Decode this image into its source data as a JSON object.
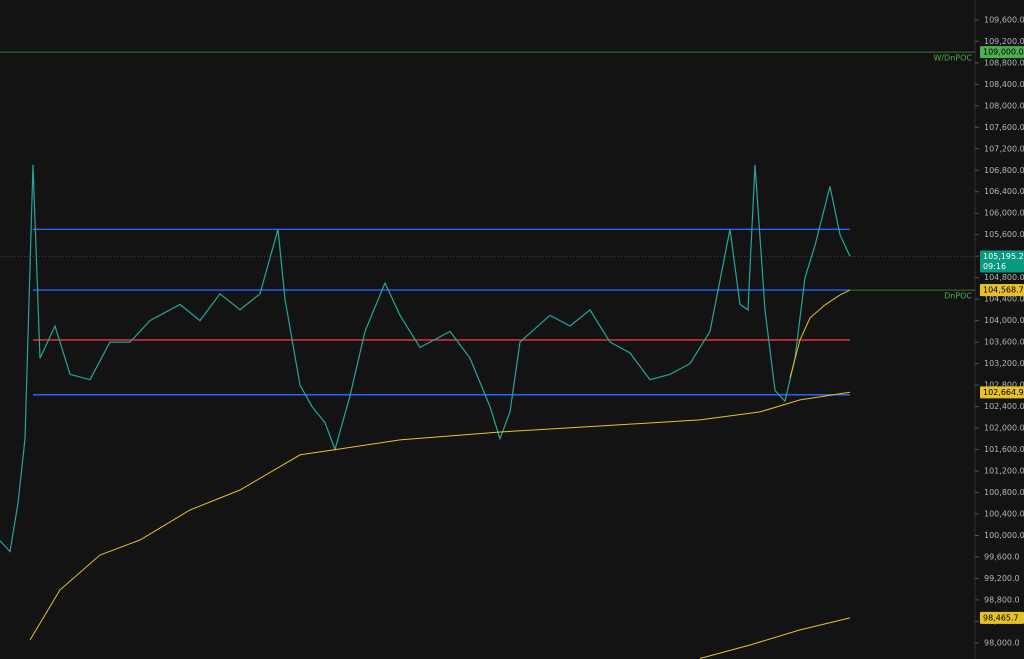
{
  "chart_data": {
    "type": "line",
    "ylim": [
      97700,
      109970
    ],
    "xlim": [
      0,
      970
    ],
    "yticks": [
      {
        "value": 98000,
        "label": "98,000.0"
      },
      {
        "value": 98400,
        "label": "98,400.0"
      },
      {
        "value": 98800,
        "label": "98,800.0"
      },
      {
        "value": 99200,
        "label": "99,200.0"
      },
      {
        "value": 99600,
        "label": "99,600.0"
      },
      {
        "value": 100000,
        "label": "100,000.0"
      },
      {
        "value": 100400,
        "label": "100,400.0"
      },
      {
        "value": 100800,
        "label": "100,800.0"
      },
      {
        "value": 101200,
        "label": "101,200.0"
      },
      {
        "value": 101600,
        "label": "101,600.0"
      },
      {
        "value": 102000,
        "label": "102,000.0"
      },
      {
        "value": 102400,
        "label": "102,400.0"
      },
      {
        "value": 102800,
        "label": "102,800.0"
      },
      {
        "value": 103200,
        "label": "103,200.0"
      },
      {
        "value": 103600,
        "label": "103,600.0"
      },
      {
        "value": 104000,
        "label": "104,000.0"
      },
      {
        "value": 104400,
        "label": "104,400.0"
      },
      {
        "value": 104800,
        "label": "104,800.0"
      },
      {
        "value": 105200,
        "label": "105,200.0"
      },
      {
        "value": 105600,
        "label": "105,600.0"
      },
      {
        "value": 106000,
        "label": "106,000.0"
      },
      {
        "value": 106400,
        "label": "106,400.0"
      },
      {
        "value": 106800,
        "label": "106,800.0"
      },
      {
        "value": 107200,
        "label": "107,200.0"
      },
      {
        "value": 107600,
        "label": "107,600.0"
      },
      {
        "value": 108000,
        "label": "108,000.0"
      },
      {
        "value": 108400,
        "label": "108,400.0"
      },
      {
        "value": 108800,
        "label": "108,800.0"
      },
      {
        "value": 109200,
        "label": "109,200.0"
      },
      {
        "value": 109600,
        "label": "109,600.0"
      }
    ],
    "series": [
      {
        "color": "#26a69a",
        "x": [
          0,
          10,
          18,
          25,
          33,
          40,
          55,
          70,
          90,
          110,
          130,
          150,
          180,
          200,
          220,
          240,
          260,
          278,
          285,
          300,
          312,
          325,
          335,
          350,
          365,
          385,
          400,
          420,
          450,
          470,
          490,
          500,
          510,
          520,
          550,
          570,
          590,
          610,
          630,
          650,
          670,
          690,
          710,
          730,
          740,
          748,
          755,
          765,
          775,
          785,
          795,
          805,
          815,
          830,
          840,
          850
        ],
        "values": [
          99900,
          99700,
          100600,
          101800,
          106900,
          103300,
          103900,
          103000,
          102900,
          103600,
          103600,
          104000,
          104300,
          104000,
          104500,
          104200,
          104500,
          105700,
          104400,
          102800,
          102400,
          102100,
          101600,
          102600,
          103800,
          104700,
          104100,
          103500,
          103800,
          103300,
          102400,
          101800,
          102300,
          103600,
          104100,
          103900,
          104200,
          103600,
          103400,
          102900,
          103000,
          103200,
          103800,
          105700,
          104300,
          104200,
          106900,
          104200,
          102700,
          102500,
          103300,
          104800,
          105400,
          106500,
          105600,
          105195.2
        ]
      },
      {
        "color": "#e6c229",
        "x": [
          30,
          60,
          100,
          140,
          190,
          240,
          300,
          400,
          500,
          600,
          700,
          760,
          800,
          850
        ],
        "values": [
          98054,
          98986,
          99637,
          99916,
          100475,
          100847,
          101500,
          101779,
          101927,
          102039,
          102151,
          102300,
          102524,
          102664.9
        ],
        "end_label": "102,664.9"
      },
      {
        "color": "#e6c229",
        "x": [
          790,
          800,
          810,
          825,
          840,
          850
        ],
        "values": [
          102933,
          103641,
          104051,
          104293,
          104479,
          104568.7
        ],
        "end_label": "104,568.7"
      },
      {
        "color": "#e6c229",
        "x": [
          700,
          750,
          800,
          850
        ],
        "values": [
          97710,
          97961,
          98241,
          98465.7
        ],
        "end_label": "98,465.7"
      }
    ],
    "levels": [
      {
        "name": "W/DnPOC",
        "value": 109000,
        "value_label": "109,000.0",
        "color": "#4caf50"
      },
      {
        "name": "DnPOC",
        "value": 104570,
        "value_label": "104,570.0",
        "color": "#4caf50"
      },
      {
        "value": 105700,
        "color": "#2962ff"
      },
      {
        "value": 104570,
        "color": "#2962ff"
      },
      {
        "value": 103640,
        "color": "#f23645"
      },
      {
        "value": 102620,
        "color": "#2962ff"
      }
    ],
    "last_price": {
      "value": 105195.2,
      "label": "105,195.2",
      "countdown": "09:16",
      "color": "#089981"
    }
  }
}
